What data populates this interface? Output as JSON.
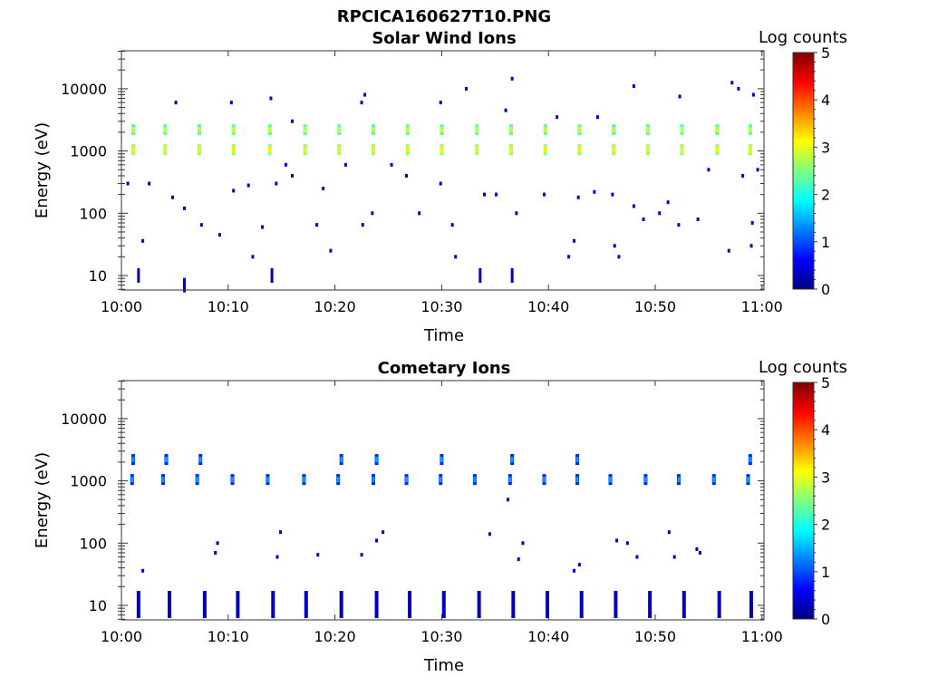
{
  "chart_data": [
    {
      "type": "heatmap",
      "figure_title": "RPCICA160627T10.PNG",
      "title": "Solar Wind Ions",
      "xlabel": "Time",
      "ylabel": "Energy (eV)",
      "x_ticks": [
        "10:00",
        "10:10",
        "10:20",
        "10:30",
        "10:40",
        "10:50",
        "11:00"
      ],
      "y_ticks": [
        "10",
        "100",
        "1000",
        "10000"
      ],
      "y_scale": "log",
      "xlim_minutes": [
        0,
        60
      ],
      "ylim": [
        6,
        45000
      ],
      "colorbar": {
        "label": "Log counts",
        "ticks": [
          "0",
          "1",
          "2",
          "3",
          "4",
          "5"
        ],
        "range": [
          0,
          5
        ],
        "colormap": "jet"
      },
      "bands": [
        {
          "energy_eV": 2200,
          "times_min": [
            1.1,
            4.1,
            7.3,
            10.5,
            13.9,
            17.2,
            20.4,
            23.6,
            26.8,
            30.0,
            33.3,
            36.5,
            39.7,
            42.9,
            46.1,
            49.3,
            52.5,
            55.8,
            58.9
          ],
          "level": 2.0
        },
        {
          "energy_eV": 1050,
          "times_min": [
            1.1,
            4.1,
            7.3,
            10.5,
            13.9,
            17.2,
            20.4,
            23.6,
            26.8,
            30.0,
            33.3,
            36.5,
            39.7,
            42.9,
            46.1,
            49.3,
            52.5,
            55.8,
            58.9
          ],
          "level": 2.3
        }
      ],
      "points": [
        {
          "t": 1.6,
          "e": 10,
          "v": 0.3
        },
        {
          "t": 5.9,
          "e": 7,
          "v": 0.3
        },
        {
          "t": 14.1,
          "e": 10,
          "v": 0.3
        },
        {
          "t": 33.6,
          "e": 10,
          "v": 0.3
        },
        {
          "t": 36.6,
          "e": 10,
          "v": 0.3
        },
        {
          "t": 12.3,
          "e": 20,
          "v": 0.3
        },
        {
          "t": 19.6,
          "e": 25,
          "v": 0.3
        },
        {
          "t": 31.3,
          "e": 20,
          "v": 0.3
        },
        {
          "t": 41.9,
          "e": 20,
          "v": 0.3
        },
        {
          "t": 46.6,
          "e": 20,
          "v": 0.3
        },
        {
          "t": 56.9,
          "e": 25,
          "v": 0.3
        },
        {
          "t": 2.0,
          "e": 36,
          "v": 0.3
        },
        {
          "t": 42.4,
          "e": 36,
          "v": 0.3
        },
        {
          "t": 46.2,
          "e": 30,
          "v": 0.3
        },
        {
          "t": 59.0,
          "e": 30,
          "v": 0.3
        },
        {
          "t": 2.6,
          "e": 300,
          "v": 0.3
        },
        {
          "t": 0.6,
          "e": 300,
          "v": 0.3
        },
        {
          "t": 4.8,
          "e": 180,
          "v": 0.3
        },
        {
          "t": 5.9,
          "e": 120,
          "v": 0.3
        },
        {
          "t": 7.5,
          "e": 65,
          "v": 0.3
        },
        {
          "t": 9.2,
          "e": 45,
          "v": 0.3
        },
        {
          "t": 10.5,
          "e": 230,
          "v": 0.3
        },
        {
          "t": 11.9,
          "e": 280,
          "v": 0.3
        },
        {
          "t": 13.2,
          "e": 60,
          "v": 0.3
        },
        {
          "t": 14.5,
          "e": 300,
          "v": 0.3
        },
        {
          "t": 15.4,
          "e": 600,
          "v": 0.3
        },
        {
          "t": 16.0,
          "e": 400,
          "v": 0.3
        },
        {
          "t": 18.3,
          "e": 65,
          "v": 0.3
        },
        {
          "t": 18.9,
          "e": 250,
          "v": 0.3
        },
        {
          "t": 21.0,
          "e": 600,
          "v": 0.3
        },
        {
          "t": 22.6,
          "e": 65,
          "v": 0.3
        },
        {
          "t": 23.5,
          "e": 100,
          "v": 0.3
        },
        {
          "t": 25.3,
          "e": 600,
          "v": 0.3
        },
        {
          "t": 26.7,
          "e": 400,
          "v": 0.3
        },
        {
          "t": 27.9,
          "e": 100,
          "v": 0.3
        },
        {
          "t": 29.9,
          "e": 300,
          "v": 0.3
        },
        {
          "t": 31.0,
          "e": 65,
          "v": 0.3
        },
        {
          "t": 34.0,
          "e": 200,
          "v": 0.3
        },
        {
          "t": 35.1,
          "e": 200,
          "v": 0.3
        },
        {
          "t": 37.0,
          "e": 100,
          "v": 0.3
        },
        {
          "t": 39.6,
          "e": 200,
          "v": 0.3
        },
        {
          "t": 42.8,
          "e": 180,
          "v": 0.3
        },
        {
          "t": 44.3,
          "e": 220,
          "v": 0.3
        },
        {
          "t": 46.0,
          "e": 200,
          "v": 0.3
        },
        {
          "t": 48.0,
          "e": 130,
          "v": 0.3
        },
        {
          "t": 48.9,
          "e": 80,
          "v": 0.3
        },
        {
          "t": 50.4,
          "e": 100,
          "v": 0.3
        },
        {
          "t": 51.2,
          "e": 150,
          "v": 0.3
        },
        {
          "t": 52.2,
          "e": 65,
          "v": 0.3
        },
        {
          "t": 54.0,
          "e": 80,
          "v": 0.3
        },
        {
          "t": 55.0,
          "e": 500,
          "v": 0.3
        },
        {
          "t": 58.2,
          "e": 400,
          "v": 0.3
        },
        {
          "t": 59.1,
          "e": 70,
          "v": 0.3
        },
        {
          "t": 59.6,
          "e": 500,
          "v": 0.3
        },
        {
          "t": 5.1,
          "e": 6000,
          "v": 0.3
        },
        {
          "t": 10.3,
          "e": 6000,
          "v": 0.3
        },
        {
          "t": 14.0,
          "e": 7000,
          "v": 0.3
        },
        {
          "t": 16.0,
          "e": 3000,
          "v": 0.3
        },
        {
          "t": 22.5,
          "e": 6000,
          "v": 0.3
        },
        {
          "t": 22.8,
          "e": 8000,
          "v": 0.3
        },
        {
          "t": 29.9,
          "e": 6000,
          "v": 0.3
        },
        {
          "t": 32.3,
          "e": 10000,
          "v": 0.3
        },
        {
          "t": 36.0,
          "e": 4500,
          "v": 0.3
        },
        {
          "t": 36.6,
          "e": 14500,
          "v": 0.3
        },
        {
          "t": 40.8,
          "e": 3500,
          "v": 0.3
        },
        {
          "t": 44.6,
          "e": 3500,
          "v": 0.3
        },
        {
          "t": 48.0,
          "e": 11000,
          "v": 0.3
        },
        {
          "t": 52.3,
          "e": 7500,
          "v": 0.3
        },
        {
          "t": 57.2,
          "e": 12500,
          "v": 0.3
        },
        {
          "t": 57.8,
          "e": 10000,
          "v": 0.3
        },
        {
          "t": 59.2,
          "e": 8000,
          "v": 0.3
        }
      ]
    },
    {
      "type": "heatmap",
      "title": "Cometary Ions",
      "xlabel": "Time",
      "ylabel": "Energy (eV)",
      "x_ticks": [
        "10:00",
        "10:10",
        "10:20",
        "10:30",
        "10:40",
        "10:50",
        "11:00"
      ],
      "y_ticks": [
        "10",
        "100",
        "1000",
        "10000"
      ],
      "y_scale": "log",
      "xlim_minutes": [
        0,
        60
      ],
      "ylim": [
        6,
        45000
      ],
      "colorbar": {
        "label": "Log counts",
        "ticks": [
          "0",
          "1",
          "2",
          "3",
          "4",
          "5"
        ],
        "range": [
          0,
          5
        ],
        "colormap": "jet"
      },
      "bands": [
        {
          "energy_eV": 2200,
          "times_min": [
            1.1,
            4.2,
            7.4,
            20.6,
            23.9,
            30.0,
            36.6,
            42.7,
            58.9
          ],
          "level": 0.5
        },
        {
          "energy_eV": 1050,
          "times_min": [
            1.0,
            3.9,
            7.1,
            10.4,
            13.7,
            17.1,
            20.3,
            23.6,
            26.7,
            29.9,
            33.1,
            36.4,
            39.6,
            42.7,
            45.8,
            49.1,
            52.2,
            55.5,
            58.7
          ],
          "level": 0.5
        },
        {
          "energy_eV": 8,
          "times_min": [
            1.6,
            4.5,
            7.8,
            10.9,
            14.2,
            17.3,
            20.6,
            23.9,
            27.0,
            30.2,
            33.5,
            36.7,
            39.9,
            43.1,
            46.3,
            49.5,
            52.7,
            56.0,
            59.0
          ],
          "level": 0.3
        }
      ],
      "points": [
        {
          "t": 2.0,
          "e": 36,
          "v": 0.3
        },
        {
          "t": 42.4,
          "e": 36,
          "v": 0.3
        },
        {
          "t": 9.0,
          "e": 100,
          "v": 0.3
        },
        {
          "t": 8.8,
          "e": 70,
          "v": 0.3
        },
        {
          "t": 14.9,
          "e": 150,
          "v": 0.3
        },
        {
          "t": 14.6,
          "e": 60,
          "v": 0.3
        },
        {
          "t": 18.4,
          "e": 65,
          "v": 0.3
        },
        {
          "t": 22.5,
          "e": 65,
          "v": 0.3
        },
        {
          "t": 23.9,
          "e": 110,
          "v": 0.3
        },
        {
          "t": 24.5,
          "e": 150,
          "v": 0.3
        },
        {
          "t": 34.5,
          "e": 140,
          "v": 0.3
        },
        {
          "t": 36.2,
          "e": 500,
          "v": 0.3
        },
        {
          "t": 37.2,
          "e": 55,
          "v": 0.3
        },
        {
          "t": 37.6,
          "e": 100,
          "v": 0.3
        },
        {
          "t": 42.9,
          "e": 45,
          "v": 0.3
        },
        {
          "t": 46.4,
          "e": 110,
          "v": 0.3
        },
        {
          "t": 47.4,
          "e": 100,
          "v": 0.3
        },
        {
          "t": 48.3,
          "e": 60,
          "v": 0.3
        },
        {
          "t": 51.3,
          "e": 150,
          "v": 0.3
        },
        {
          "t": 51.8,
          "e": 60,
          "v": 0.3
        },
        {
          "t": 53.9,
          "e": 80,
          "v": 0.3
        },
        {
          "t": 54.2,
          "e": 70,
          "v": 0.3
        }
      ]
    }
  ]
}
